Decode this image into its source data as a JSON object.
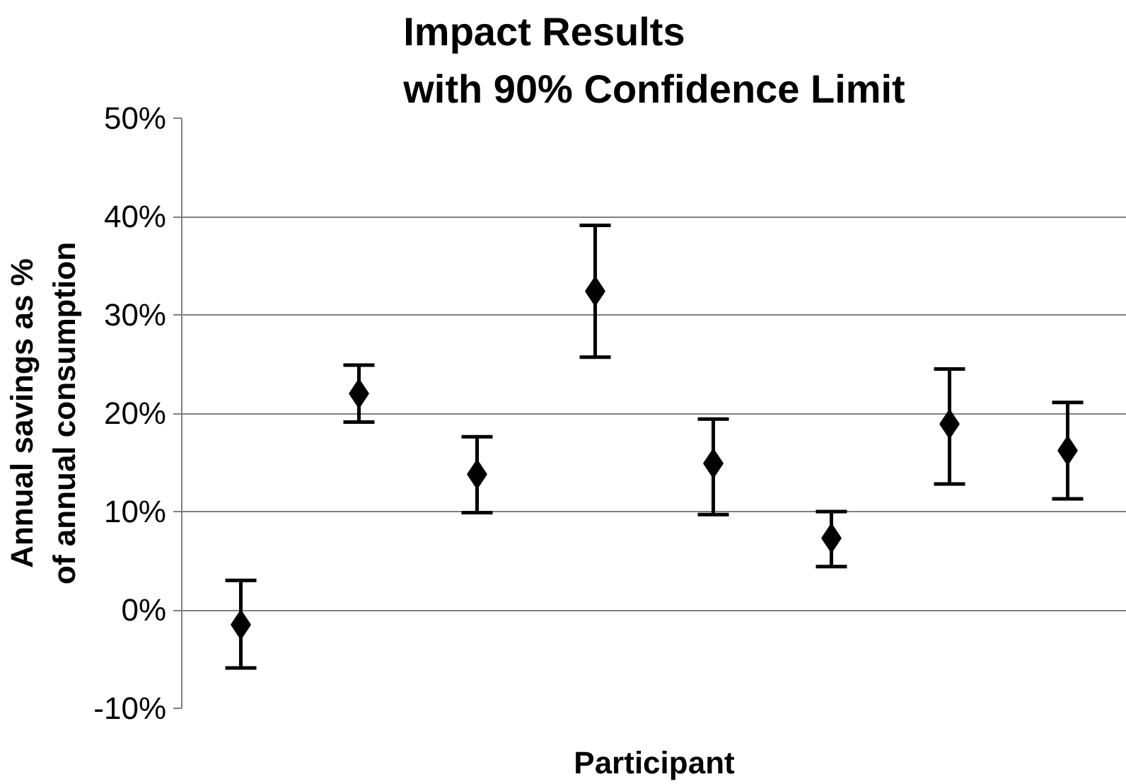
{
  "chart_data": {
    "type": "scatter",
    "title": "Impact Results\nwith 90% Confidence Limit",
    "xlabel": "Participant",
    "ylabel": "Annual savings as %\nof annual consumption",
    "categories": [
      null,
      null,
      null,
      null,
      null,
      null,
      null,
      null
    ],
    "series": [
      {
        "color": "#000000",
        "values": [
          -1.5,
          22.0,
          13.8,
          32.4,
          14.9,
          7.3,
          18.9,
          16.2
        ],
        "errors": [
          [
            -5.9,
            3.0
          ],
          [
            19.1,
            24.9
          ],
          [
            9.9,
            17.6
          ],
          [
            25.7,
            39.1
          ],
          [
            9.7,
            19.4
          ],
          [
            4.4,
            10.0
          ],
          [
            12.8,
            24.5
          ],
          [
            11.3,
            21.1
          ]
        ]
      }
    ],
    "ylim": [
      -10,
      50
    ],
    "yticks": [
      {
        "value": -10,
        "label": "-10%"
      },
      {
        "value": 0,
        "label": "0%"
      },
      {
        "value": 10,
        "label": "10%"
      },
      {
        "value": 20,
        "label": "20%"
      },
      {
        "value": 30,
        "label": "30%"
      },
      {
        "value": 40,
        "label": "40%"
      },
      {
        "value": 50,
        "label": "50%"
      }
    ],
    "grid": "y",
    "tick_labels": "y",
    "marker": "diamond"
  }
}
